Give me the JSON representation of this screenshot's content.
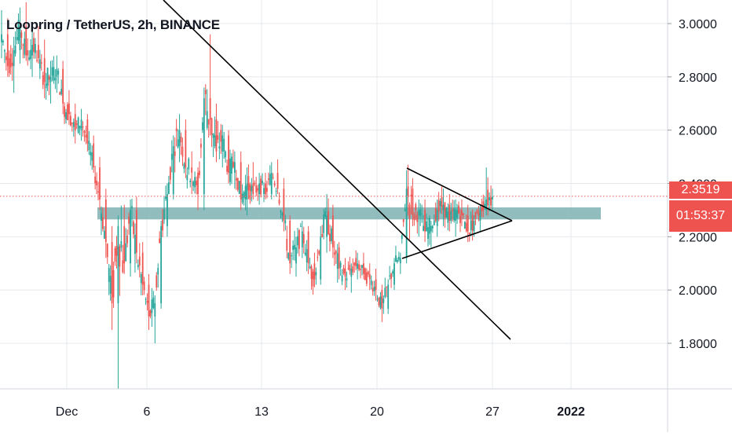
{
  "title": "Loopring / TetherUS, 2h, BINANCE",
  "price_badge": {
    "price": "2.3519",
    "countdown": "01:53:37"
  },
  "colors": {
    "up": "#26a69a",
    "down": "#ef5350",
    "support_zone": "#7fb2b3",
    "trendline": "#000000",
    "last_price_line": "#ef5350",
    "gridline": "#e6e8ec"
  },
  "chart_data": {
    "type": "candlestick",
    "symbol": "Loopring / TetherUS",
    "interval": "2h",
    "exchange": "BINANCE",
    "y_tick_labels": [
      "3.0000",
      "2.8000",
      "2.6000",
      "2.4000",
      "2.2000",
      "2.0000",
      "1.8000"
    ],
    "x_tick_labels": [
      "Dec",
      "6",
      "13",
      "20",
      "27",
      "2022"
    ],
    "ylim": [
      1.63,
      3.09
    ],
    "last_price": 2.3519,
    "series": [
      {
        "label": "OHLC path (open, high, low, close sampled per candle)",
        "values": [
          [
            2.93,
            3.05,
            2.87,
            2.96
          ],
          [
            2.96,
            3.02,
            2.8,
            2.84
          ],
          [
            2.84,
            2.95,
            2.74,
            2.9
          ],
          [
            2.9,
            3.06,
            2.85,
            2.99
          ],
          [
            2.99,
            3.08,
            2.86,
            2.88
          ],
          [
            2.88,
            2.98,
            2.8,
            2.92
          ],
          [
            2.92,
            2.99,
            2.85,
            2.87
          ],
          [
            2.87,
            2.94,
            2.72,
            2.78
          ],
          [
            2.78,
            2.86,
            2.7,
            2.8
          ],
          [
            2.8,
            2.88,
            2.74,
            2.83
          ],
          [
            2.83,
            2.86,
            2.66,
            2.7
          ],
          [
            2.7,
            2.75,
            2.62,
            2.66
          ],
          [
            2.66,
            2.7,
            2.55,
            2.6
          ],
          [
            2.6,
            2.68,
            2.56,
            2.64
          ],
          [
            2.64,
            2.66,
            2.52,
            2.55
          ],
          [
            2.55,
            2.58,
            2.44,
            2.46
          ],
          [
            2.46,
            2.5,
            2.3,
            2.34
          ],
          [
            2.34,
            2.38,
            2.12,
            2.18
          ],
          [
            2.18,
            2.24,
            1.85,
            1.95
          ],
          [
            1.95,
            2.28,
            1.63,
            2.24
          ],
          [
            2.24,
            2.32,
            2.06,
            2.1
          ],
          [
            2.1,
            2.34,
            2.05,
            2.3
          ],
          [
            2.3,
            2.35,
            2.1,
            2.14
          ],
          [
            2.14,
            2.18,
            1.98,
            2.02
          ],
          [
            2.02,
            2.06,
            1.85,
            1.9
          ],
          [
            1.9,
            1.98,
            1.8,
            1.95
          ],
          [
            1.95,
            2.26,
            1.93,
            2.24
          ],
          [
            2.24,
            2.4,
            2.2,
            2.36
          ],
          [
            2.36,
            2.58,
            2.34,
            2.54
          ],
          [
            2.54,
            2.66,
            2.48,
            2.6
          ],
          [
            2.6,
            2.64,
            2.42,
            2.46
          ],
          [
            2.46,
            2.52,
            2.36,
            2.44
          ],
          [
            2.44,
            2.46,
            2.3,
            2.36
          ],
          [
            2.36,
            2.76,
            2.3,
            2.72
          ],
          [
            2.72,
            2.96,
            2.58,
            2.64
          ],
          [
            2.64,
            2.7,
            2.48,
            2.52
          ],
          [
            2.52,
            2.62,
            2.46,
            2.58
          ],
          [
            2.58,
            2.6,
            2.4,
            2.44
          ],
          [
            2.44,
            2.52,
            2.38,
            2.48
          ],
          [
            2.48,
            2.52,
            2.3,
            2.34
          ],
          [
            2.34,
            2.46,
            2.28,
            2.4
          ],
          [
            2.4,
            2.48,
            2.34,
            2.36
          ],
          [
            2.36,
            2.44,
            2.32,
            2.4
          ],
          [
            2.4,
            2.44,
            2.34,
            2.36
          ],
          [
            2.36,
            2.48,
            2.34,
            2.44
          ],
          [
            2.44,
            2.49,
            2.36,
            2.38
          ],
          [
            2.38,
            2.42,
            2.22,
            2.26
          ],
          [
            2.26,
            2.28,
            2.06,
            2.1
          ],
          [
            2.1,
            2.2,
            2.05,
            2.16
          ],
          [
            2.16,
            2.26,
            2.12,
            2.22
          ],
          [
            2.22,
            2.24,
            2.06,
            2.1
          ],
          [
            2.1,
            2.14,
            2.01,
            2.04
          ],
          [
            2.04,
            2.24,
            2.02,
            2.2
          ],
          [
            2.2,
            2.36,
            2.14,
            2.28
          ],
          [
            2.28,
            2.32,
            2.12,
            2.16
          ],
          [
            2.16,
            2.18,
            2.04,
            2.08
          ],
          [
            2.08,
            2.12,
            2.0,
            2.05
          ],
          [
            2.05,
            2.1,
            1.99,
            2.08
          ],
          [
            2.08,
            2.14,
            2.04,
            2.1
          ],
          [
            2.1,
            2.14,
            2.04,
            2.06
          ],
          [
            2.06,
            2.1,
            2.0,
            2.04
          ],
          [
            2.04,
            2.08,
            1.96,
            2.0
          ],
          [
            2.0,
            2.02,
            1.88,
            1.93
          ],
          [
            1.93,
            2.04,
            1.91,
            2.02
          ],
          [
            2.02,
            2.12,
            2.0,
            2.1
          ],
          [
            2.1,
            2.14,
            2.06,
            2.12
          ],
          [
            2.12,
            2.45,
            2.1,
            2.38
          ],
          [
            2.38,
            2.42,
            2.24,
            2.28
          ],
          [
            2.28,
            2.34,
            2.2,
            2.3
          ],
          [
            2.3,
            2.34,
            2.18,
            2.22
          ],
          [
            2.22,
            2.26,
            2.16,
            2.24
          ],
          [
            2.24,
            2.34,
            2.2,
            2.3
          ],
          [
            2.3,
            2.38,
            2.24,
            2.32
          ],
          [
            2.32,
            2.36,
            2.22,
            2.26
          ],
          [
            2.26,
            2.34,
            2.2,
            2.3
          ],
          [
            2.3,
            2.34,
            2.24,
            2.28
          ],
          [
            2.28,
            2.32,
            2.18,
            2.22
          ],
          [
            2.22,
            2.28,
            2.2,
            2.26
          ],
          [
            2.26,
            2.32,
            2.22,
            2.3
          ],
          [
            2.3,
            2.46,
            2.28,
            2.34
          ],
          [
            2.34,
            2.38,
            2.3,
            2.35
          ]
        ]
      }
    ],
    "annotations": [
      "descending trendline",
      "horizontal support zone near 2.27",
      "symmetrical triangle (upper and lower trendlines converging)",
      "dotted last-price line at 2.3519"
    ]
  }
}
